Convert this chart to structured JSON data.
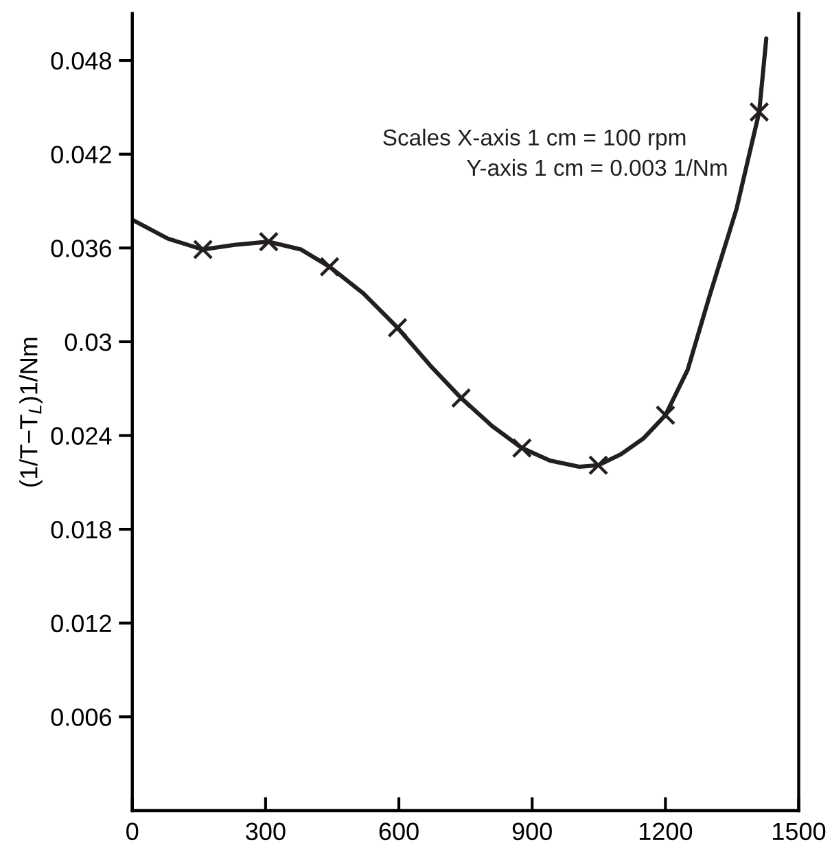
{
  "chart_data": {
    "type": "line",
    "ylabel": "(1/T−T$_{L}$)1/Nm",
    "annotations": [
      "Scales X-axis 1 cm = 100 rpm",
      "Y-axis 1 cm = 0.003 1/Nm"
    ],
    "xlim": [
      0,
      1500
    ],
    "xticks": [
      0,
      300,
      600,
      900,
      1200,
      1500
    ],
    "ylim": [
      0,
      0.051
    ],
    "yticks": [
      0.006,
      0.012,
      0.018,
      0.024,
      0.03,
      0.036,
      0.042,
      0.048
    ],
    "grid": false,
    "legend": false,
    "series": [
      {
        "color": "#231f20",
        "marker": "none",
        "line_style": "solid",
        "x": [
          0,
          80,
          159,
          230,
          307,
          380,
          444,
          520,
          597,
          670,
          740,
          810,
          877,
          940,
          1006,
          1049,
          1100,
          1150,
          1200,
          1250,
          1300,
          1360,
          1411,
          1427
        ],
        "values": [
          0.0378,
          0.0366,
          0.0359,
          0.0362,
          0.0364,
          0.0359,
          0.0348,
          0.0331,
          0.0309,
          0.0285,
          0.0264,
          0.0246,
          0.0232,
          0.0224,
          0.022,
          0.0221,
          0.0228,
          0.0238,
          0.0253,
          0.0282,
          0.033,
          0.0385,
          0.0447,
          0.0494
        ]
      },
      {
        "type": "scatter",
        "color": "#231f20",
        "marker": "cross",
        "x": [
          159,
          307,
          444,
          597,
          740,
          877,
          1049,
          1200,
          1411
        ],
        "values": [
          0.0359,
          0.0364,
          0.0348,
          0.0309,
          0.0264,
          0.0232,
          0.0221,
          0.0253,
          0.0447
        ]
      }
    ]
  }
}
